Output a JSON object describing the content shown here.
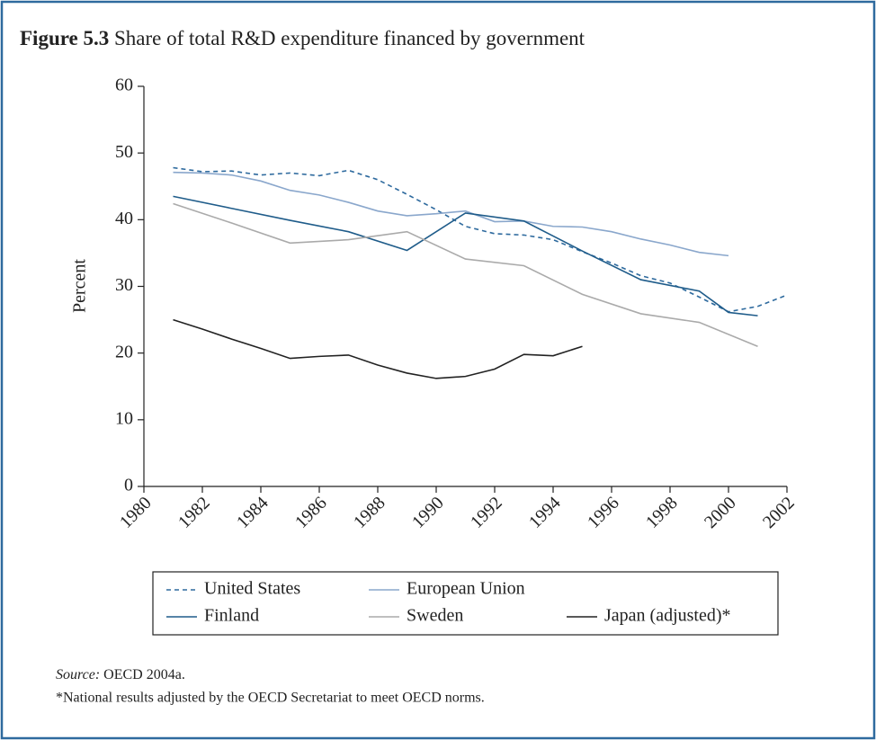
{
  "chart_data": {
    "type": "line",
    "figure_label": "Figure 5.3",
    "title": "Share of total R&D expenditure financed by government",
    "ylabel": "Percent",
    "xlim": [
      1980,
      2002
    ],
    "xticks": [
      1980,
      1982,
      1984,
      1986,
      1988,
      1990,
      1992,
      1994,
      1996,
      1998,
      2000,
      2002
    ],
    "ylim": [
      0,
      60
    ],
    "yticks": [
      0,
      10,
      20,
      30,
      40,
      50,
      60
    ],
    "series": [
      {
        "name": "United States",
        "color": "#2e6a9e",
        "style": "dashed",
        "x": [
          1981,
          1982,
          1983,
          1984,
          1985,
          1986,
          1987,
          1988,
          1989,
          1990,
          1991,
          1992,
          1993,
          1994,
          1995,
          1996,
          1997,
          1998,
          1999,
          2000,
          2001,
          2002
        ],
        "values": [
          47.8,
          47.2,
          47.3,
          46.7,
          47.0,
          46.6,
          47.4,
          46.0,
          43.8,
          41.5,
          39.0,
          37.9,
          37.7,
          37.0,
          35.2,
          33.5,
          31.6,
          30.5,
          28.4,
          26.2,
          27.0,
          28.7
        ]
      },
      {
        "name": "European Union",
        "color": "#8aa7cc",
        "style": "solid",
        "x": [
          1981,
          1982,
          1983,
          1984,
          1985,
          1986,
          1987,
          1988,
          1989,
          1990,
          1991,
          1992,
          1993,
          1994,
          1995,
          1996,
          1997,
          1998,
          1999,
          2000
        ],
        "values": [
          47.1,
          47.0,
          46.7,
          45.8,
          44.4,
          43.7,
          42.6,
          41.3,
          40.6,
          40.9,
          41.3,
          39.7,
          39.8,
          39.0,
          38.9,
          38.2,
          37.1,
          36.2,
          35.1,
          34.6
        ]
      },
      {
        "name": "Finland",
        "color": "#1f5c8a",
        "style": "solid",
        "x": [
          1981,
          1983,
          1985,
          1987,
          1989,
          1991,
          1993,
          1995,
          1997,
          1999,
          2000,
          2001
        ],
        "values": [
          43.5,
          41.7,
          39.9,
          38.2,
          35.4,
          41.0,
          39.8,
          35.3,
          31.0,
          29.3,
          26.1,
          25.6
        ]
      },
      {
        "name": "Sweden",
        "color": "#aaaaaa",
        "style": "solid",
        "x": [
          1981,
          1983,
          1985,
          1987,
          1989,
          1991,
          1993,
          1995,
          1997,
          1999,
          2001
        ],
        "values": [
          42.4,
          39.5,
          36.5,
          37.0,
          38.2,
          34.1,
          33.1,
          28.8,
          25.9,
          24.6,
          21.0
        ]
      },
      {
        "name": "Japan (adjusted)*",
        "color": "#222222",
        "style": "solid",
        "x": [
          1981,
          1982,
          1983,
          1984,
          1985,
          1986,
          1987,
          1988,
          1989,
          1990,
          1991,
          1992,
          1993,
          1994,
          1995
        ],
        "values": [
          25.0,
          23.6,
          22.1,
          20.7,
          19.2,
          19.5,
          19.7,
          18.2,
          17.0,
          16.2,
          16.5,
          17.6,
          19.8,
          19.6,
          21.0
        ]
      }
    ],
    "source_label": "Source:",
    "source": "OECD 2004a.",
    "note": "*National results adjusted by the OECD Secretariat to meet OECD norms."
  }
}
